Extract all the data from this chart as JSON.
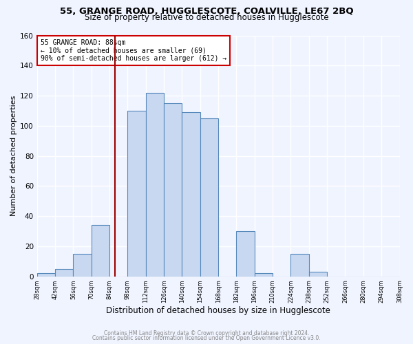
{
  "title": "55, GRANGE ROAD, HUGGLESCOTE, COALVILLE, LE67 2BQ",
  "subtitle": "Size of property relative to detached houses in Hugglescote",
  "xlabel": "Distribution of detached houses by size in Hugglescote",
  "ylabel": "Number of detached properties",
  "footer_line1": "Contains HM Land Registry data © Crown copyright and database right 2024.",
  "footer_line2": "Contains public sector information licensed under the Open Government Licence v3.0.",
  "bin_edges": [
    28,
    42,
    56,
    70,
    84,
    98,
    112,
    126,
    140,
    154,
    168,
    182,
    196,
    210,
    224,
    238,
    252,
    266,
    280,
    294,
    308
  ],
  "bin_labels": [
    "28sqm",
    "42sqm",
    "56sqm",
    "70sqm",
    "84sqm",
    "98sqm",
    "112sqm",
    "126sqm",
    "140sqm",
    "154sqm",
    "168sqm",
    "182sqm",
    "196sqm",
    "210sqm",
    "224sqm",
    "238sqm",
    "252sqm",
    "266sqm",
    "280sqm",
    "294sqm",
    "308sqm"
  ],
  "counts": [
    2,
    5,
    15,
    34,
    0,
    110,
    122,
    115,
    109,
    105,
    0,
    30,
    2,
    0,
    15,
    3,
    0,
    0,
    0,
    0
  ],
  "bar_color": "#c8d8f0",
  "bar_edge_color": "#5588bb",
  "property_size": 88,
  "property_label": "55 GRANGE ROAD: 88sqm",
  "annotation_line1": "← 10% of detached houses are smaller (69)",
  "annotation_line2": "90% of semi-detached houses are larger (612) →",
  "vline_color": "#990000",
  "vline_x": 88,
  "annotation_box_color": "#ffffff",
  "annotation_box_edge_color": "#cc0000",
  "ylim": [
    0,
    160
  ],
  "yticks": [
    0,
    20,
    40,
    60,
    80,
    100,
    120,
    140,
    160
  ],
  "background_color": "#f0f4ff",
  "plot_background_color": "#f0f4ff",
  "grid_color": "#ffffff",
  "title_fontsize": 9.5,
  "subtitle_fontsize": 8.5,
  "xlabel_fontsize": 8.5,
  "ylabel_fontsize": 8
}
